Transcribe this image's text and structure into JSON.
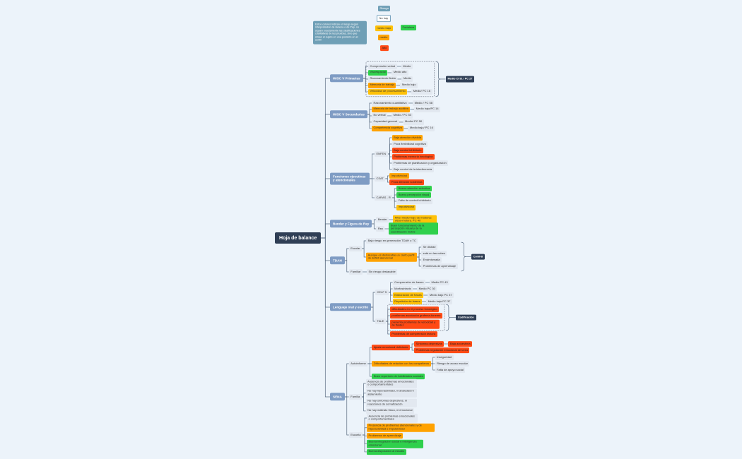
{
  "colors": {
    "orange": "#ffa200",
    "yellow": "#ffc107",
    "red": "#ff4a14",
    "green": "#2fd04c",
    "branch": "#7f9cc4",
    "root": "#2f3e55",
    "legend": "#6f9fb6"
  },
  "legend": {
    "note": "Estos colores indican el riesgo según interpretación de Helena o de Pep, no siguen exactamente las clasificaciones cualitativas de las pruebas, sino que sitúan el sujeto en una posición en el centil",
    "riesgo": "Riesgo",
    "no_hay": "No hay",
    "medio_bajo": "medio bajo",
    "medio": "medio",
    "alto": "Alto",
    "fortaleza": "Fortaleza"
  },
  "nodes": [
    {
      "id": "root",
      "text": "Hoja de balance",
      "style": "root"
    },
    {
      "id": "b1",
      "parent": "root",
      "text": "WISC V Primarias",
      "style": "branch"
    },
    {
      "id": "b1a",
      "parent": "b1",
      "text": "Comprensión verbal",
      "style": "gray"
    },
    {
      "id": "b1a1",
      "parent": "b1a",
      "text": "Medio",
      "style": "gray"
    },
    {
      "id": "b1b",
      "parent": "b1",
      "text": "Visoespacial",
      "style": "green"
    },
    {
      "id": "b1b1",
      "parent": "b1b",
      "text": "Medio alto",
      "style": "gray"
    },
    {
      "id": "b1c",
      "parent": "b1",
      "text": "Razonamiento fluido",
      "style": "gray"
    },
    {
      "id": "b1c1",
      "parent": "b1c",
      "text": "Medio",
      "style": "gray"
    },
    {
      "id": "b1d",
      "parent": "b1",
      "text": "Memoria de trabajo",
      "style": "orange"
    },
    {
      "id": "b1d1",
      "parent": "b1d",
      "text": "Medio bajo",
      "style": "gray"
    },
    {
      "id": "b1e",
      "parent": "b1",
      "text": "Velocidad de procesamiento",
      "style": "yellow"
    },
    {
      "id": "b1e1",
      "parent": "b1e",
      "text": "Medio/ PC 16",
      "style": "gray"
    },
    {
      "id": "b1s",
      "text": "Medio CI 91 / PC 27",
      "style": "dark"
    },
    {
      "id": "b2",
      "parent": "root",
      "text": "WISC V Secundarias",
      "style": "branch"
    },
    {
      "id": "b2a",
      "parent": "b2",
      "text": "Razonamiento cuantitativo",
      "style": "gray"
    },
    {
      "id": "b2a1",
      "parent": "b2a",
      "text": "Medio / PC 58",
      "style": "gray"
    },
    {
      "id": "b2b",
      "parent": "b2",
      "text": "Memoria de trabajo auditiva",
      "style": "orange"
    },
    {
      "id": "b2b1",
      "parent": "b2b",
      "text": "Medio bajo/PC 14",
      "style": "gray"
    },
    {
      "id": "b2c",
      "parent": "b2",
      "text": "No verbal",
      "style": "gray"
    },
    {
      "id": "b2c1",
      "parent": "b2c",
      "text": "Medio / PC 53",
      "style": "gray"
    },
    {
      "id": "b2d",
      "parent": "b2",
      "text": "Capacidad general",
      "style": "gray"
    },
    {
      "id": "b2d1",
      "parent": "b2d",
      "text": "Medio/ PC 50",
      "style": "gray"
    },
    {
      "id": "b2e",
      "parent": "b2",
      "text": "Competencia cognitiva",
      "style": "orange"
    },
    {
      "id": "b2e1",
      "parent": "b2e",
      "text": "Medio bajo/ PC 16",
      "style": "gray"
    },
    {
      "id": "b3",
      "parent": "root",
      "text": "Funciones ejecutivas y atencionales",
      "style": "branch",
      "wrap": true
    },
    {
      "id": "b3x",
      "parent": "b3",
      "text": "ENFEN",
      "style": "gray"
    },
    {
      "id": "b3x1",
      "parent": "b3x",
      "text": "Baja atención dividida",
      "style": "orange"
    },
    {
      "id": "b3x2",
      "parent": "b3x",
      "text": "Poca flexibilidad cognitiva",
      "style": "gray"
    },
    {
      "id": "b3x3",
      "parent": "b3x",
      "text": "Bajo control inhibitorio",
      "style": "red"
    },
    {
      "id": "b3x4",
      "parent": "b3x",
      "text": "Problemas memoria fonológica",
      "style": "red"
    },
    {
      "id": "b3x5",
      "parent": "b3x",
      "text": "Problemas de planificación y organización",
      "style": "gray"
    },
    {
      "id": "b3x6",
      "parent": "b3x",
      "text": "Bajo control de la interferencia",
      "style": "gray"
    },
    {
      "id": "b3y",
      "parent": "b3",
      "text": "CSAT",
      "style": "gray"
    },
    {
      "id": "b3y1",
      "parent": "b3y",
      "text": "Impulsividad",
      "style": "orange"
    },
    {
      "id": "b3y2",
      "parent": "b3y",
      "text": "Poca atención sostenida",
      "style": "red"
    },
    {
      "id": "b3z",
      "parent": "b3",
      "text": "CARAS - R",
      "style": "gray"
    },
    {
      "id": "b3z1",
      "parent": "b3z",
      "text": "Buena atención selectiva",
      "style": "green"
    },
    {
      "id": "b3z2",
      "parent": "b3z",
      "text": "Buena percepción visual",
      "style": "green"
    },
    {
      "id": "b3z3",
      "parent": "b3z",
      "text": "Falta de control inhibitorio",
      "style": "gray"
    },
    {
      "id": "b3z4",
      "parent": "b3z",
      "text": "Impulsividad",
      "style": "yellow"
    },
    {
      "id": "b4",
      "parent": "root",
      "text": "Bender y Figura de Rey",
      "style": "branch"
    },
    {
      "id": "b4a",
      "parent": "b4",
      "text": "Bender",
      "style": "gray"
    },
    {
      "id": "b4a1",
      "parent": "b4a",
      "text": "Nivel medio-bajo de madurez visuo-motora. PC 40",
      "style": "yellow",
      "wrap": true
    },
    {
      "id": "b4b",
      "parent": "b4",
      "text": "Rey",
      "style": "gray"
    },
    {
      "id": "b4b1",
      "parent": "b4b",
      "text": "Buen funcionamiento de la percepción visual y de la coordinación motriz",
      "style": "green",
      "wrap": true
    },
    {
      "id": "b5",
      "parent": "root",
      "text": "TDAH",
      "style": "branch"
    },
    {
      "id": "b5a",
      "parent": "b5",
      "text": "Escolar",
      "style": "gray"
    },
    {
      "id": "b5a1",
      "parent": "b5a",
      "text": "Bajo riesgo en generación TDAH o TC",
      "style": "gray"
    },
    {
      "id": "b5a2",
      "parent": "b5a",
      "text": "Aunque es destacable un cierto perfil de déficit atencional",
      "style": "orange",
      "wrap": true
    },
    {
      "id": "b5a21",
      "parent": "b5a2",
      "text": "Se distrae",
      "style": "gray"
    },
    {
      "id": "b5a22",
      "parent": "b5a2",
      "text": "está en las nubes",
      "style": "gray"
    },
    {
      "id": "b5a23",
      "parent": "b5a2",
      "text": "Ensimismada",
      "style": "gray"
    },
    {
      "id": "b5a24",
      "parent": "b5a2",
      "text": "Problemas de aprendizaje",
      "style": "gray"
    },
    {
      "id": "b5s",
      "text": "Conil-B",
      "style": "dark"
    },
    {
      "id": "b5b",
      "parent": "b5",
      "text": "Familiar",
      "style": "gray"
    },
    {
      "id": "b5b1",
      "parent": "b5b",
      "text": "Sin riesgo destacable",
      "style": "gray"
    },
    {
      "id": "b6",
      "parent": "root",
      "text": "Lenguaje oral y escrito",
      "style": "branch"
    },
    {
      "id": "b6a",
      "parent": "b6",
      "text": "CELF 5",
      "style": "gray"
    },
    {
      "id": "b6a1",
      "parent": "b6a",
      "text": "Comprensión de frases",
      "style": "gray"
    },
    {
      "id": "b6a11",
      "parent": "b6a1",
      "text": "Medio PC 43",
      "style": "gray"
    },
    {
      "id": "b6a2",
      "parent": "b6a",
      "text": "Morfosintaxis",
      "style": "gray"
    },
    {
      "id": "b6a21",
      "parent": "b6a2",
      "text": "Medio PC 30",
      "style": "gray"
    },
    {
      "id": "b6a3",
      "parent": "b6a",
      "text": "Elaboración de frases",
      "style": "yellow"
    },
    {
      "id": "b6a31",
      "parent": "b6a3",
      "text": "Medio bajo PC 37",
      "style": "gray"
    },
    {
      "id": "b6a4",
      "parent": "b6a",
      "text": "Repetición de frases",
      "style": "yellow"
    },
    {
      "id": "b6a41",
      "parent": "b6a4",
      "text": "Medio bajo PC 37",
      "style": "gray"
    },
    {
      "id": "b6b",
      "parent": "b6",
      "text": "TALE",
      "style": "gray"
    },
    {
      "id": "b6b1",
      "parent": "b6b",
      "text": "dificultades en el proceso fonológico",
      "style": "red"
    },
    {
      "id": "b6b2",
      "parent": "b6b",
      "text": "problemas asociación grafema-fonema",
      "style": "red"
    },
    {
      "id": "b6b3",
      "parent": "b6b",
      "text": "presenta problemas de velocidad y de fluidez",
      "style": "red",
      "wrap": true
    },
    {
      "id": "b6b4",
      "parent": "b6b",
      "text": "Problemas de comprensión lectora",
      "style": "red"
    },
    {
      "id": "b6s",
      "text": "Codificación",
      "style": "dark"
    },
    {
      "id": "b7",
      "parent": "root",
      "text": "SENA",
      "style": "branch"
    },
    {
      "id": "b7a",
      "parent": "b7",
      "text": "Autoinforme",
      "style": "gray"
    },
    {
      "id": "b7a1",
      "parent": "b7a",
      "text": "Ajuste emocional deficiente",
      "style": "red"
    },
    {
      "id": "b7a11",
      "parent": "b7a1",
      "text": "Síntomas depresivos",
      "style": "red"
    },
    {
      "id": "b7a111",
      "parent": "b7a11",
      "text": "Baja autoestima",
      "style": "red"
    },
    {
      "id": "b7a12",
      "parent": "b7a1",
      "text": "Problemas regulación emocional de la ira",
      "style": "red"
    },
    {
      "id": "b7a2",
      "parent": "b7a",
      "text": "Dificultades de relación con los compañeros",
      "style": "orange"
    },
    {
      "id": "b7a21",
      "parent": "b7a2",
      "text": "Inseguridad",
      "style": "gray"
    },
    {
      "id": "b7a22",
      "parent": "b7a2",
      "text": "Riesgo de acoso escolar",
      "style": "gray"
    },
    {
      "id": "b7a23",
      "parent": "b7a2",
      "text": "Falta de apoyo social",
      "style": "gray"
    },
    {
      "id": "b7a3",
      "parent": "b7a",
      "text": "Buen repertorio de habilidades sociales",
      "style": "green"
    },
    {
      "id": "b7b",
      "parent": "b7",
      "text": "Familia",
      "style": "gray"
    },
    {
      "id": "b7b1",
      "parent": "b7b",
      "text": "Ausencia de problemas emocionales o comportamentales",
      "style": "gray",
      "wrap": true
    },
    {
      "id": "b7b2",
      "parent": "b7b",
      "text": "No hay hiperactividad, ni ansiedad ni aislamiento",
      "style": "gray",
      "wrap": true
    },
    {
      "id": "b7b3",
      "parent": "b7b",
      "text": "No hay síntomas depresivos, ni reacciones de somatización",
      "style": "gray",
      "wrap": true
    },
    {
      "id": "b7b4",
      "parent": "b7b",
      "text": "No hay maltrato físico, ni emocional",
      "style": "gray"
    },
    {
      "id": "b7c",
      "parent": "b7",
      "text": "Escuela",
      "style": "gray"
    },
    {
      "id": "b7c1",
      "parent": "b7c",
      "text": "Ausencia de problemas emocionales o comportamentales",
      "style": "gray",
      "wrap": true
    },
    {
      "id": "b7c2",
      "parent": "b7c",
      "text": "Presencia de problemas atencionales y de hiperactividad e impulsividad",
      "style": "orange",
      "wrap": true
    },
    {
      "id": "b7c3",
      "parent": "b7c",
      "text": "Problemas de aprendizaje",
      "style": "orange"
    },
    {
      "id": "b7c4",
      "parent": "b7c",
      "text": "Buena integración social e inteligencia emocional",
      "style": "green",
      "wrap": true
    },
    {
      "id": "b7c5",
      "parent": "b7c",
      "text": "Buena disposición al estudio",
      "style": "green"
    }
  ]
}
